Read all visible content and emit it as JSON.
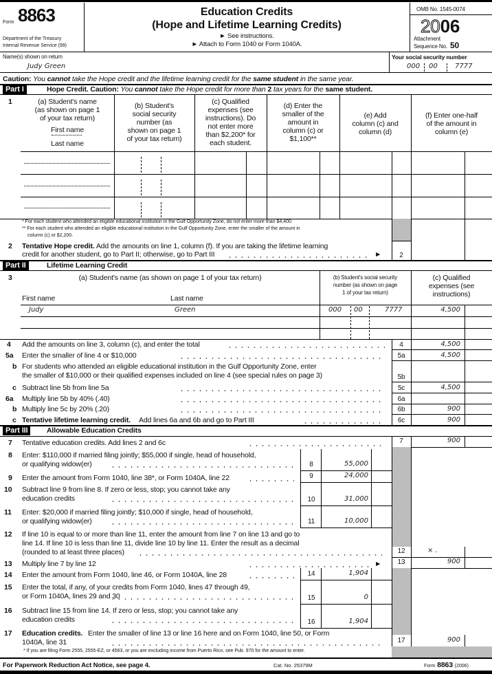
{
  "header": {
    "form_label": "Form",
    "form_number": "8863",
    "dept": "Department of the Treasury",
    "irs": "Internal Revenue Service  (99)",
    "title": "Education Credits",
    "subtitle": "(Hope and Lifetime Learning Credits)",
    "instr1": "► See instructions.",
    "instr2": "► Attach to Form 1040 or Form 1040A.",
    "omb": "OMB No. 1545-0074",
    "year_light": "20",
    "year_bold": "06",
    "attachment": "Attachment",
    "sequence_label": "Sequence No.",
    "sequence_no": "50"
  },
  "taxpayer": {
    "name_label": "Name(s) shown on return",
    "name": "Judy Green",
    "ssn_label": "Your social security number",
    "ssn": [
      "000",
      "00",
      "7777"
    ]
  },
  "caution": {
    "bold": "Caution:",
    "t1": "You",
    "b1": "cannot",
    "t2": "take the Hope credit and the lifetime learning credit for the",
    "b2": "same student",
    "t3": "in the same year."
  },
  "part1": {
    "label": "Part I",
    "title": "Hope Credit. Caution:",
    "t1": "You",
    "b1": "cannot",
    "t2": "take the Hope credit for more than",
    "b2": "2",
    "t3": "tax years for the",
    "b3": "same student.",
    "line_no": "1",
    "columns": [
      "(a) Student's name\n(as shown on page 1\nof your tax return)",
      "(b) Student's\nsocial security\nnumber (as\nshown on page 1\nof your tax return)",
      "(c) Qualified\nexpenses (see\ninstructions). Do\nnot enter more\nthan $2,200* for\neach student.",
      "(d) Enter the\nsmaller of the\namount in\ncolumn (c) or\n$1,100**",
      "(e) Add\ncolumn (c) and\ncolumn (d)",
      "(f) Enter one-half\nof the amount in\ncolumn (e)"
    ],
    "first_name": "First name",
    "last_name": "Last name",
    "footnotes": [
      "* For each student who attended an eligible educational institution in the Gulf Opportunity Zone, do not enter more than $4,400.",
      "** For each student who attended an eligible educational institution in the Gulf Opportunity Zone, enter the smaller of the amount in",
      "column (c) or $2,200."
    ],
    "line2": {
      "no": "2",
      "bold": "Tentative Hope credit.",
      "text1": "Add the amounts on line 1, column (f). If you are taking the lifetime learning",
      "text2": "credit for another student, go to Part II; otherwise, go to Part III",
      "arrow": "►",
      "box": "2"
    }
  },
  "part2": {
    "label": "Part II",
    "title": "Lifetime Learning Credit",
    "line_no": "3",
    "col_a": "(a) Student's name (as shown on page 1 of your tax return)",
    "first_name": "First name",
    "last_name": "Last name",
    "col_b": "(b) Student's social security\nnumber (as shown on page\n1 of your tax return)",
    "col_c": "(c) Qualified\nexpenses (see\ninstructions)",
    "students": [
      {
        "first": "Judy",
        "last": "Green",
        "ssn": [
          "000",
          "00",
          "7777"
        ],
        "expenses": "4,500"
      }
    ],
    "lines": [
      {
        "no": "4",
        "text": "Add the amounts on line 3, column (c), and enter the total",
        "box": "4",
        "value": "4,500"
      },
      {
        "no": "5a",
        "text": "Enter the smaller of line 4 or $10,000",
        "box": "5a",
        "value": "4,500"
      },
      {
        "no": "b",
        "text": "For students who attended an eligible educational institution in the Gulf Opportunity Zone, enter",
        "text2": "the smaller of $10,000 or their qualified expenses included on line 4 (see special rules on page 3)",
        "box": "5b",
        "value": ""
      },
      {
        "no": "c",
        "text": "Subtract line 5b from line 5a",
        "box": "5c",
        "value": "4,500"
      },
      {
        "no": "6a",
        "text": "Multiply line 5b by 40% (.40)",
        "box": "6a",
        "value": ""
      },
      {
        "no": "b",
        "text": "Multiply line 5c by 20% (.20)",
        "box": "6b",
        "value": "900"
      },
      {
        "no": "c",
        "bold": "Tentative lifetime learning credit.",
        "text": "Add lines 6a and 6b and go to Part III",
        "box": "6c",
        "value": "900"
      }
    ]
  },
  "part3": {
    "label": "Part III",
    "title": "Allowable Education Credits",
    "lines": [
      {
        "no": "7",
        "text": "Tentative education credits. Add lines 2 and 6c",
        "box": "7",
        "value": "900"
      },
      {
        "no": "8",
        "text": "Enter: $110,000 if married filing jointly; $55,000 if single, head of household,",
        "text2": "or qualifying widow(er)",
        "box": "8",
        "value": "55,000"
      },
      {
        "no": "9",
        "text": "Enter the amount from Form 1040, line 38*, or Form 1040A, line 22",
        "box": "9",
        "value": "24,000"
      },
      {
        "no": "10",
        "text": "Subtract line 9 from line 8. If zero or less, stop; you cannot take any",
        "text2": "education credits",
        "box": "10",
        "value": "31,000"
      },
      {
        "no": "11",
        "text": "Enter: $20,000 if married filing jointly; $10,000 if single, head of household,",
        "text2": "or qualifying widow(er)",
        "box": "11",
        "value": "10,000"
      },
      {
        "no": "12",
        "text": "If line 10 is equal to or more than line 11, enter the amount from line 7 on line 13 and go to",
        "text2": "line 14. If line 10 is less than line 11, divide line 10 by line 11. Enter the result as a decimal",
        "text3": "(rounded to at least three places)",
        "box": "12",
        "value": "× ."
      },
      {
        "no": "13",
        "text": "Multiply line 7 by line 12",
        "arrow": "►",
        "box": "13",
        "value": "900"
      },
      {
        "no": "14",
        "text": "Enter the amount from Form 1040, line 46, or Form 1040A, line 28",
        "box": "14",
        "value": "1,904"
      },
      {
        "no": "15",
        "text": "Enter the total, if any, of your credits from Form 1040, lines 47 through 49,",
        "text2": "or Form 1040A, lines 29 and 30",
        "box": "15",
        "value": "0"
      },
      {
        "no": "16",
        "text": "Subtract line 15 from line 14. If zero or less, stop; you cannot take any",
        "text2": "education credits",
        "box": "16",
        "value": "1,904"
      },
      {
        "no": "17",
        "bold": "Education credits.",
        "text": "Enter the smaller of line 13 or line 16 here and on Form 1040, line 50, or Form",
        "text2": "1040A, line 31",
        "box": "17",
        "value": "900"
      }
    ],
    "footnote": "* If you are filing Form 2555, 2555-EZ, or 4563, or you are excluding income from Puerto Rico, see Pub. 970 for the amount to enter."
  },
  "footer": {
    "paperwork": "For Paperwork Reduction Act Notice, see page 4.",
    "cat": "Cat. No. 25379M",
    "form_label": "Form",
    "form_number": "8863",
    "year": "(2006)"
  },
  "colors": {
    "shade": "#bdbdbd",
    "ink": "#000000"
  }
}
